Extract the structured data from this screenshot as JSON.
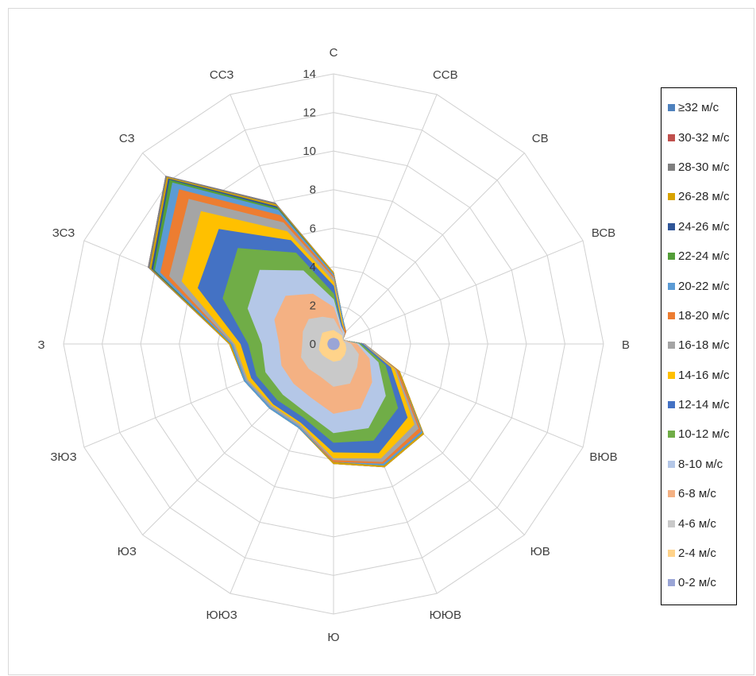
{
  "chart_data": {
    "type": "radar",
    "directions": [
      "С",
      "ССВ",
      "СВ",
      "ВСВ",
      "В",
      "ВЮВ",
      "ЮВ",
      "ЮЮВ",
      "Ю",
      "ЮЮЗ",
      "ЮЗ",
      "ЗЮЗ",
      "З",
      "ЗСЗ",
      "СЗ",
      "ССЗ"
    ],
    "r_ticks": [
      "0",
      "2",
      "4",
      "6",
      "8",
      "10",
      "12",
      "14"
    ],
    "rmax": 14,
    "grid": true,
    "legend_position": "right",
    "series": [
      {
        "name": "≥32 м/с",
        "color": "#4e81bd",
        "values": [
          3.7,
          1.3,
          0.9,
          0.5,
          1.6,
          3.7,
          6.6,
          6.9,
          6.2,
          4.7,
          4.7,
          5.0,
          5.4,
          10.4,
          12.3,
          7.9
        ]
      },
      {
        "name": "30-32 м/с",
        "color": "#c0504d",
        "values": [
          3.7,
          1.3,
          0.9,
          0.5,
          1.6,
          3.7,
          6.6,
          6.9,
          6.2,
          4.7,
          4.7,
          5.0,
          5.4,
          10.4,
          12.3,
          7.9
        ]
      },
      {
        "name": "28-30 м/с",
        "color": "#7f7f7f",
        "values": [
          3.7,
          1.3,
          0.9,
          0.5,
          1.6,
          3.7,
          6.6,
          6.9,
          6.2,
          4.7,
          4.7,
          5.0,
          5.4,
          10.4,
          12.3,
          7.9
        ]
      },
      {
        "name": "26-28 м/с",
        "color": "#d8a300",
        "values": [
          3.7,
          1.3,
          0.9,
          0.5,
          1.6,
          3.7,
          6.6,
          6.9,
          6.2,
          4.7,
          4.7,
          5.0,
          5.4,
          10.3,
          12.2,
          7.8
        ]
      },
      {
        "name": "24-26 м/с",
        "color": "#2f5597",
        "values": [
          3.6,
          1.3,
          0.9,
          0.5,
          1.6,
          3.6,
          6.5,
          6.8,
          6.1,
          4.7,
          4.7,
          5.0,
          5.3,
          10.2,
          12.1,
          7.7
        ]
      },
      {
        "name": "22-24 м/с",
        "color": "#549e39",
        "values": [
          3.6,
          1.3,
          0.9,
          0.5,
          1.6,
          3.6,
          6.5,
          6.8,
          6.1,
          4.7,
          4.7,
          5.0,
          5.3,
          10.1,
          12.0,
          7.6
        ]
      },
      {
        "name": "20-22 м/с",
        "color": "#5b9bd5",
        "values": [
          3.6,
          1.3,
          0.9,
          0.5,
          1.6,
          3.6,
          6.5,
          6.8,
          6.1,
          4.7,
          4.7,
          5.0,
          5.3,
          10.0,
          11.8,
          7.5
        ]
      },
      {
        "name": "18-20 м/с",
        "color": "#ed7d31",
        "values": [
          3.5,
          1.2,
          0.9,
          0.5,
          1.6,
          3.6,
          6.4,
          6.7,
          6.1,
          4.6,
          4.6,
          4.9,
          5.2,
          9.7,
          11.3,
          7.2
        ]
      },
      {
        "name": "16-18 м/с",
        "color": "#a5a5a5",
        "values": [
          3.4,
          1.2,
          0.8,
          0.5,
          1.6,
          3.5,
          6.2,
          6.6,
          6.0,
          4.6,
          4.6,
          4.9,
          5.2,
          9.2,
          10.6,
          6.8
        ]
      },
      {
        "name": "14-16 м/с",
        "color": "#ffc000",
        "values": [
          3.2,
          1.2,
          0.8,
          0.5,
          1.5,
          3.4,
          5.9,
          6.4,
          5.9,
          4.5,
          4.5,
          4.8,
          5.1,
          8.5,
          9.7,
          6.3
        ]
      },
      {
        "name": "12-14 м/с",
        "color": "#4472c4",
        "values": [
          3.0,
          1.1,
          0.8,
          0.5,
          1.5,
          3.2,
          5.4,
          6.1,
          5.6,
          4.4,
          4.4,
          4.6,
          4.8,
          7.6,
          8.4,
          5.8
        ]
      },
      {
        "name": "10-12 м/с",
        "color": "#70ad47",
        "values": [
          2.6,
          1.0,
          0.8,
          0.5,
          1.4,
          2.9,
          4.7,
          5.4,
          5.1,
          4.1,
          4.1,
          4.3,
          4.4,
          6.2,
          7.0,
          5.1
        ]
      },
      {
        "name": "8-10 м/с",
        "color": "#b4c7e7",
        "values": [
          2.3,
          1.0,
          0.8,
          0.5,
          1.3,
          2.5,
          3.8,
          4.7,
          4.6,
          3.8,
          3.7,
          3.8,
          3.7,
          4.8,
          5.4,
          4.1
        ]
      },
      {
        "name": "6-8 м/с",
        "color": "#f4b183",
        "values": [
          1.9,
          0.9,
          0.7,
          0.5,
          1.2,
          2.0,
          2.8,
          3.6,
          3.6,
          3.0,
          2.9,
          2.9,
          2.8,
          3.3,
          3.5,
          2.8
        ]
      },
      {
        "name": "4-6 м/с",
        "color": "#c9c9c9",
        "values": [
          1.3,
          0.8,
          0.7,
          0.5,
          0.9,
          1.4,
          1.7,
          2.2,
          2.2,
          1.8,
          1.8,
          1.8,
          1.6,
          1.7,
          1.8,
          1.5
        ]
      },
      {
        "name": "2-4 м/с",
        "color": "#ffd38a",
        "values": [
          0.7,
          0.6,
          0.6,
          0.5,
          0.6,
          0.7,
          0.8,
          0.9,
          0.9,
          0.8,
          0.8,
          0.8,
          0.7,
          0.7,
          0.8,
          0.7
        ]
      },
      {
        "name": "0-2 м/с",
        "color": "#9aa5d6",
        "values": [
          0.3,
          0.3,
          0.3,
          0.3,
          0.3,
          0.3,
          0.3,
          0.3,
          0.3,
          0.3,
          0.3,
          0.3,
          0.3,
          0.3,
          0.3,
          0.3
        ]
      }
    ]
  }
}
